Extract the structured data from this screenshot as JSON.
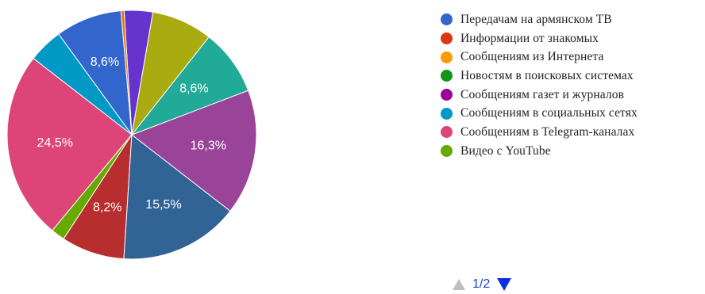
{
  "chart_data": {
    "type": "pie",
    "slices": [
      {
        "name": "",
        "value": 8.6,
        "label": "8,6%",
        "color": "#3366cc"
      },
      {
        "name": "",
        "value": 4.5,
        "label": "",
        "color": "#0099c6"
      },
      {
        "name": "",
        "value": 24.5,
        "label": "24,5%",
        "color": "#dd4477"
      },
      {
        "name": "",
        "value": 1.8,
        "label": "",
        "color": "#66aa00"
      },
      {
        "name": "",
        "value": 8.2,
        "label": "8,2%",
        "color": "#b82e2e"
      },
      {
        "name": "",
        "value": 15.5,
        "label": "15,5%",
        "color": "#316395"
      },
      {
        "name": "",
        "value": 16.3,
        "label": "16,3%",
        "color": "#994499"
      },
      {
        "name": "",
        "value": 8.6,
        "label": "8,6%",
        "color": "#22aa99"
      },
      {
        "name": "",
        "value": 7.9,
        "label": "",
        "color": "#aaaa11"
      },
      {
        "name": "",
        "value": 3.7,
        "label": "",
        "color": "#6633cc"
      },
      {
        "name": "",
        "value": 0.4,
        "label": "",
        "color": "#e67300"
      }
    ],
    "legend": {
      "placement": "right",
      "entries": [
        {
          "label": "Передачам на армянском ТВ",
          "color": "#3366cc"
        },
        {
          "label": "Информации от знакомых",
          "color": "#dc3912"
        },
        {
          "label": "Сообщениям из Интернета",
          "color": "#ff9900"
        },
        {
          "label": "Новостям в поисковых системах",
          "color": "#109618"
        },
        {
          "label": "Сообщениям газет и журналов",
          "color": "#990099"
        },
        {
          "label": "Сообщениям в социальных сетях",
          "color": "#0099c6"
        },
        {
          "label": "Сообщениям в Telegram-каналах",
          "color": "#dd4477"
        },
        {
          "label": "Видео с YouTube",
          "color": "#66aa00"
        }
      ]
    },
    "start_angle_deg": 95
  },
  "pager": {
    "text": "1/2"
  }
}
